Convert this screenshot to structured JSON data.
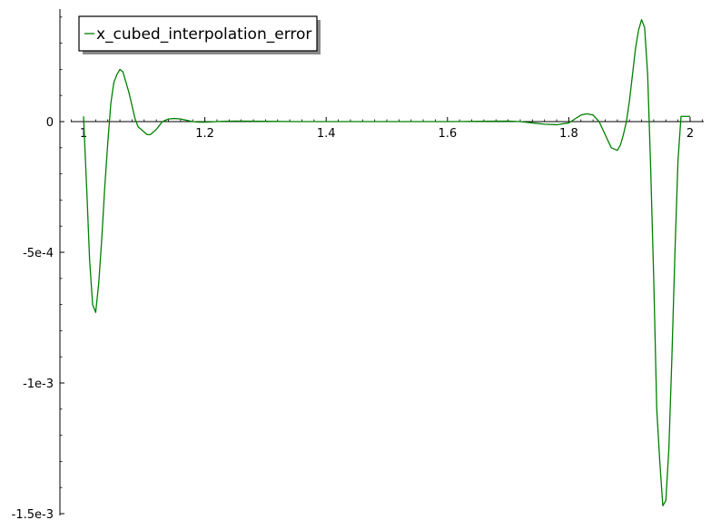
{
  "chart_data": {
    "type": "line",
    "title": "",
    "xlabel": "",
    "ylabel": "",
    "xlim": [
      0.98,
      2.02
    ],
    "ylim": [
      -0.0015,
      0.00043
    ],
    "xticks": [
      {
        "value": 1.0,
        "label": "1"
      },
      {
        "value": 1.2,
        "label": "1.2"
      },
      {
        "value": 1.4,
        "label": "1.4"
      },
      {
        "value": 1.6,
        "label": "1.6"
      },
      {
        "value": 1.8,
        "label": "1.8"
      },
      {
        "value": 2.0,
        "label": "2"
      }
    ],
    "yticks": [
      {
        "value": 0,
        "label": "0"
      },
      {
        "value": -0.0005,
        "label": "-5e-4"
      },
      {
        "value": -0.001,
        "label": "-1e-3"
      },
      {
        "value": -0.0015,
        "label": "-1.5e-3"
      }
    ],
    "grid": false,
    "legend": {
      "position": "top-left",
      "shadow": true
    },
    "series": [
      {
        "name": "x_cubed_interpolation_error",
        "color": "#008000",
        "x": [
          1.0,
          1.006,
          1.01,
          1.015,
          1.02,
          1.025,
          1.03,
          1.035,
          1.04,
          1.045,
          1.05,
          1.055,
          1.06,
          1.065,
          1.07,
          1.075,
          1.08,
          1.085,
          1.09,
          1.1,
          1.105,
          1.11,
          1.115,
          1.12,
          1.125,
          1.13,
          1.14,
          1.15,
          1.16,
          1.17,
          1.18,
          1.19,
          1.2,
          1.21,
          1.22,
          1.23,
          1.25,
          1.3,
          1.35,
          1.4,
          1.45,
          1.5,
          1.55,
          1.6,
          1.65,
          1.7,
          1.72,
          1.74,
          1.76,
          1.78,
          1.8,
          1.81,
          1.82,
          1.83,
          1.84,
          1.85,
          1.86,
          1.87,
          1.88,
          1.885,
          1.89,
          1.895,
          1.9,
          1.905,
          1.91,
          1.915,
          1.92,
          1.925,
          1.93,
          1.935,
          1.94,
          1.945,
          1.95,
          1.955,
          1.96,
          1.965,
          1.97,
          1.975,
          1.98,
          1.985,
          1.99,
          1.995,
          2.0
        ],
        "values": [
          2e-05,
          -0.0003,
          -0.00053,
          -0.0007,
          -0.00073,
          -0.00062,
          -0.00045,
          -0.00025,
          -8e-05,
          7e-05,
          0.00015,
          0.00018,
          0.0002,
          0.00019,
          0.00015,
          0.00011,
          6e-05,
          1e-05,
          -2e-05,
          -4e-05,
          -5e-05,
          -5e-05,
          -4e-05,
          -3e-05,
          -1.5e-05,
          0.0,
          1e-05,
          1.2e-05,
          1e-05,
          5e-06,
          0.0,
          -2e-06,
          -2e-06,
          -1e-06,
          0.0,
          1e-06,
          2e-06,
          1e-06,
          0.0,
          0.0,
          0.0,
          0.0,
          0.0,
          0.0,
          1e-06,
          2e-06,
          0.0,
          -5e-06,
          -1e-05,
          -1.2e-05,
          -5e-06,
          1e-05,
          2.5e-05,
          3e-05,
          2.5e-05,
          0.0,
          -5e-05,
          -0.0001,
          -0.00011,
          -9e-05,
          -5e-05,
          0.0,
          8e-05,
          0.00018,
          0.00028,
          0.00035,
          0.00039,
          0.00036,
          0.00018,
          -0.00018,
          -0.0006,
          -0.0011,
          -0.0013,
          -0.00147,
          -0.00145,
          -0.00125,
          -0.0009,
          -0.0005,
          -0.00015,
          2e-05,
          2e-05,
          2e-05,
          2e-05
        ]
      }
    ]
  }
}
